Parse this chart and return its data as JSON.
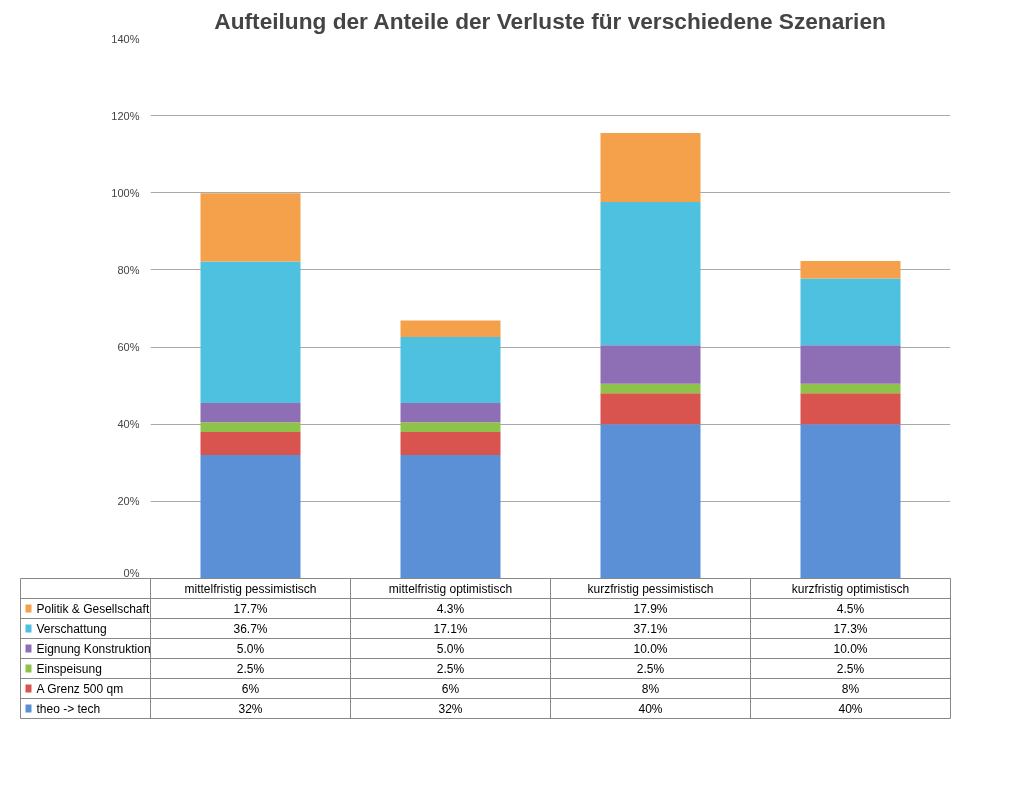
{
  "chart_data": {
    "type": "bar",
    "title": "Aufteilung der Anteile der Verluste für verschiedene Szenarien",
    "stacked": true,
    "grid": "y",
    "legend": "bottom",
    "categories": [
      "mittelfristig pessimistisch",
      "mittelfristig optimistisch",
      "kurzfristig pessimistisch",
      "kurzfristig optimistisch"
    ],
    "ylim": [
      0,
      140
    ],
    "yticks": [
      {
        "value": 0,
        "label": "0%"
      },
      {
        "value": 20,
        "label": "20%"
      },
      {
        "value": 40,
        "label": "40%"
      },
      {
        "value": 60,
        "label": "60%"
      },
      {
        "value": 80,
        "label": "80%"
      },
      {
        "value": 100,
        "label": "100%"
      },
      {
        "value": 120,
        "label": "120%"
      },
      {
        "value": 140,
        "label": "140%"
      }
    ],
    "series": [
      {
        "name": "theo -> tech",
        "color": "#5b8fd6",
        "values": [
          32,
          32,
          40,
          40
        ],
        "value_labels": [
          "32%",
          "32%",
          "40%",
          "40%"
        ]
      },
      {
        "name": "A Grenz 500 qm",
        "color": "#d9534f",
        "values": [
          6,
          6,
          8,
          8
        ],
        "value_labels": [
          "6%",
          "6%",
          "8%",
          "8%"
        ]
      },
      {
        "name": "Einspeisung",
        "color": "#8fc24a",
        "values": [
          2.5,
          2.5,
          2.5,
          2.5
        ],
        "value_labels": [
          "2.5%",
          "2.5%",
          "2.5%",
          "2.5%"
        ]
      },
      {
        "name": "Eignung Konstruktion",
        "color": "#8e6fb5",
        "values": [
          5.0,
          5.0,
          10.0,
          10.0
        ],
        "value_labels": [
          "5.0%",
          "5.0%",
          "10.0%",
          "10.0%"
        ]
      },
      {
        "name": "Verschattung",
        "color": "#4ec0e0",
        "values": [
          36.7,
          17.1,
          37.1,
          17.3
        ],
        "value_labels": [
          "36.7%",
          "17.1%",
          "37.1%",
          "17.3%"
        ]
      },
      {
        "name": "Politik & Gesellschaft",
        "color": "#f5a04a",
        "values": [
          17.7,
          4.3,
          17.9,
          4.5
        ],
        "value_labels": [
          "17.7%",
          "4.3%",
          "17.9%",
          "4.5%"
        ]
      }
    ]
  }
}
